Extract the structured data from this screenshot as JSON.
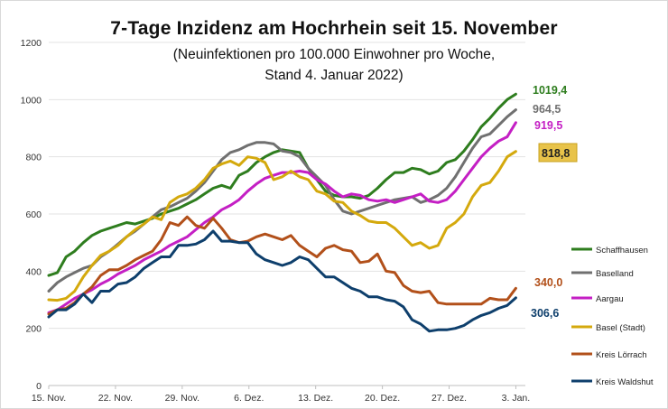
{
  "title": "7-Tage Inzidenz am Hochrhein seit 15. November",
  "subtitle_line1": "(Neuinfektionen pro 100.000 Einwohner pro Woche,",
  "subtitle_line2": "Stand 4. Januar 2022)",
  "chart_data": {
    "type": "line",
    "ylim": [
      0,
      1200
    ],
    "yticks": [
      0,
      200,
      400,
      600,
      800,
      1000,
      1200
    ],
    "ytick_labels": [
      "0",
      "200",
      "400",
      "600",
      "800",
      "1000",
      "1200"
    ],
    "xlim": [
      0,
      50
    ],
    "xticks": [
      0,
      7,
      14,
      21,
      28,
      35,
      42,
      49
    ],
    "xtick_labels": [
      "15. Nov.",
      "22. Nov.",
      "29. Nov.",
      "6. Dez.",
      "13. Dez.",
      "20. Dez.",
      "27. Dez.",
      "3. Jan."
    ],
    "grid": "horizontal",
    "legend_position": "right",
    "series": [
      {
        "name": "Schaffhausen",
        "color": "#2e7d1e",
        "end_label": "1019,4",
        "label_style": "plain",
        "values": [
          385,
          395,
          450,
          470,
          500,
          525,
          540,
          550,
          560,
          570,
          565,
          575,
          585,
          600,
          610,
          620,
          635,
          650,
          670,
          690,
          700,
          690,
          735,
          750,
          780,
          800,
          815,
          825,
          820,
          815,
          760,
          720,
          680,
          665,
          660,
          660,
          655,
          665,
          690,
          720,
          745,
          745,
          760,
          755,
          740,
          750,
          780,
          790,
          820,
          860,
          905,
          935,
          970,
          1000,
          1019.4
        ]
      },
      {
        "name": "Baselland",
        "color": "#707070",
        "end_label": "964,5",
        "label_style": "plain",
        "values": [
          330,
          360,
          380,
          395,
          410,
          420,
          450,
          470,
          495,
          520,
          540,
          565,
          590,
          615,
          625,
          640,
          655,
          680,
          710,
          750,
          790,
          815,
          825,
          840,
          850,
          850,
          845,
          820,
          815,
          800,
          760,
          730,
          700,
          650,
          610,
          600,
          610,
          620,
          630,
          640,
          650,
          655,
          660,
          640,
          650,
          665,
          690,
          730,
          780,
          830,
          870,
          880,
          910,
          940,
          964.5
        ]
      },
      {
        "name": "Aargau",
        "color": "#c41fc4",
        "end_label": "919,5",
        "label_style": "plain",
        "values": [
          255,
          265,
          285,
          305,
          320,
          335,
          355,
          370,
          390,
          405,
          420,
          440,
          455,
          470,
          490,
          505,
          520,
          545,
          570,
          590,
          615,
          630,
          650,
          680,
          705,
          725,
          735,
          745,
          745,
          750,
          745,
          720,
          705,
          680,
          660,
          670,
          665,
          650,
          645,
          650,
          640,
          650,
          660,
          670,
          645,
          640,
          650,
          680,
          720,
          760,
          800,
          830,
          855,
          870,
          919.5
        ]
      },
      {
        "name": "Basel (Stadt)",
        "color": "#d4a90d",
        "end_label": "818,8",
        "label_style": "boxed",
        "values": [
          300,
          298,
          305,
          330,
          380,
          420,
          455,
          470,
          490,
          520,
          545,
          565,
          590,
          580,
          640,
          660,
          670,
          690,
          720,
          760,
          775,
          785,
          770,
          800,
          795,
          780,
          720,
          730,
          750,
          730,
          720,
          680,
          670,
          645,
          640,
          610,
          595,
          575,
          570,
          570,
          550,
          520,
          490,
          500,
          480,
          490,
          550,
          570,
          600,
          660,
          700,
          710,
          750,
          800,
          818.8
        ]
      },
      {
        "name": "Kreis Lörrach",
        "color": "#b2501a",
        "end_label": "340,0",
        "label_style": "plain",
        "values": [
          250,
          265,
          270,
          290,
          320,
          345,
          385,
          405,
          405,
          420,
          440,
          455,
          470,
          510,
          570,
          560,
          590,
          560,
          550,
          585,
          550,
          510,
          500,
          505,
          520,
          530,
          520,
          510,
          525,
          490,
          470,
          450,
          480,
          490,
          475,
          470,
          430,
          435,
          460,
          400,
          395,
          350,
          330,
          325,
          330,
          290,
          285,
          285,
          285,
          285,
          285,
          305,
          300,
          300,
          340.0
        ]
      },
      {
        "name": "Kreis Waldshut",
        "color": "#0e3f6c",
        "end_label": "306,6",
        "label_style": "plain",
        "values": [
          240,
          265,
          265,
          285,
          320,
          290,
          330,
          330,
          355,
          360,
          380,
          410,
          430,
          450,
          450,
          490,
          490,
          495,
          510,
          540,
          505,
          505,
          500,
          500,
          460,
          440,
          430,
          420,
          430,
          450,
          440,
          410,
          380,
          380,
          360,
          340,
          330,
          310,
          310,
          300,
          295,
          275,
          230,
          215,
          190,
          195,
          195,
          200,
          210,
          230,
          245,
          255,
          270,
          280,
          306.6
        ]
      }
    ]
  }
}
